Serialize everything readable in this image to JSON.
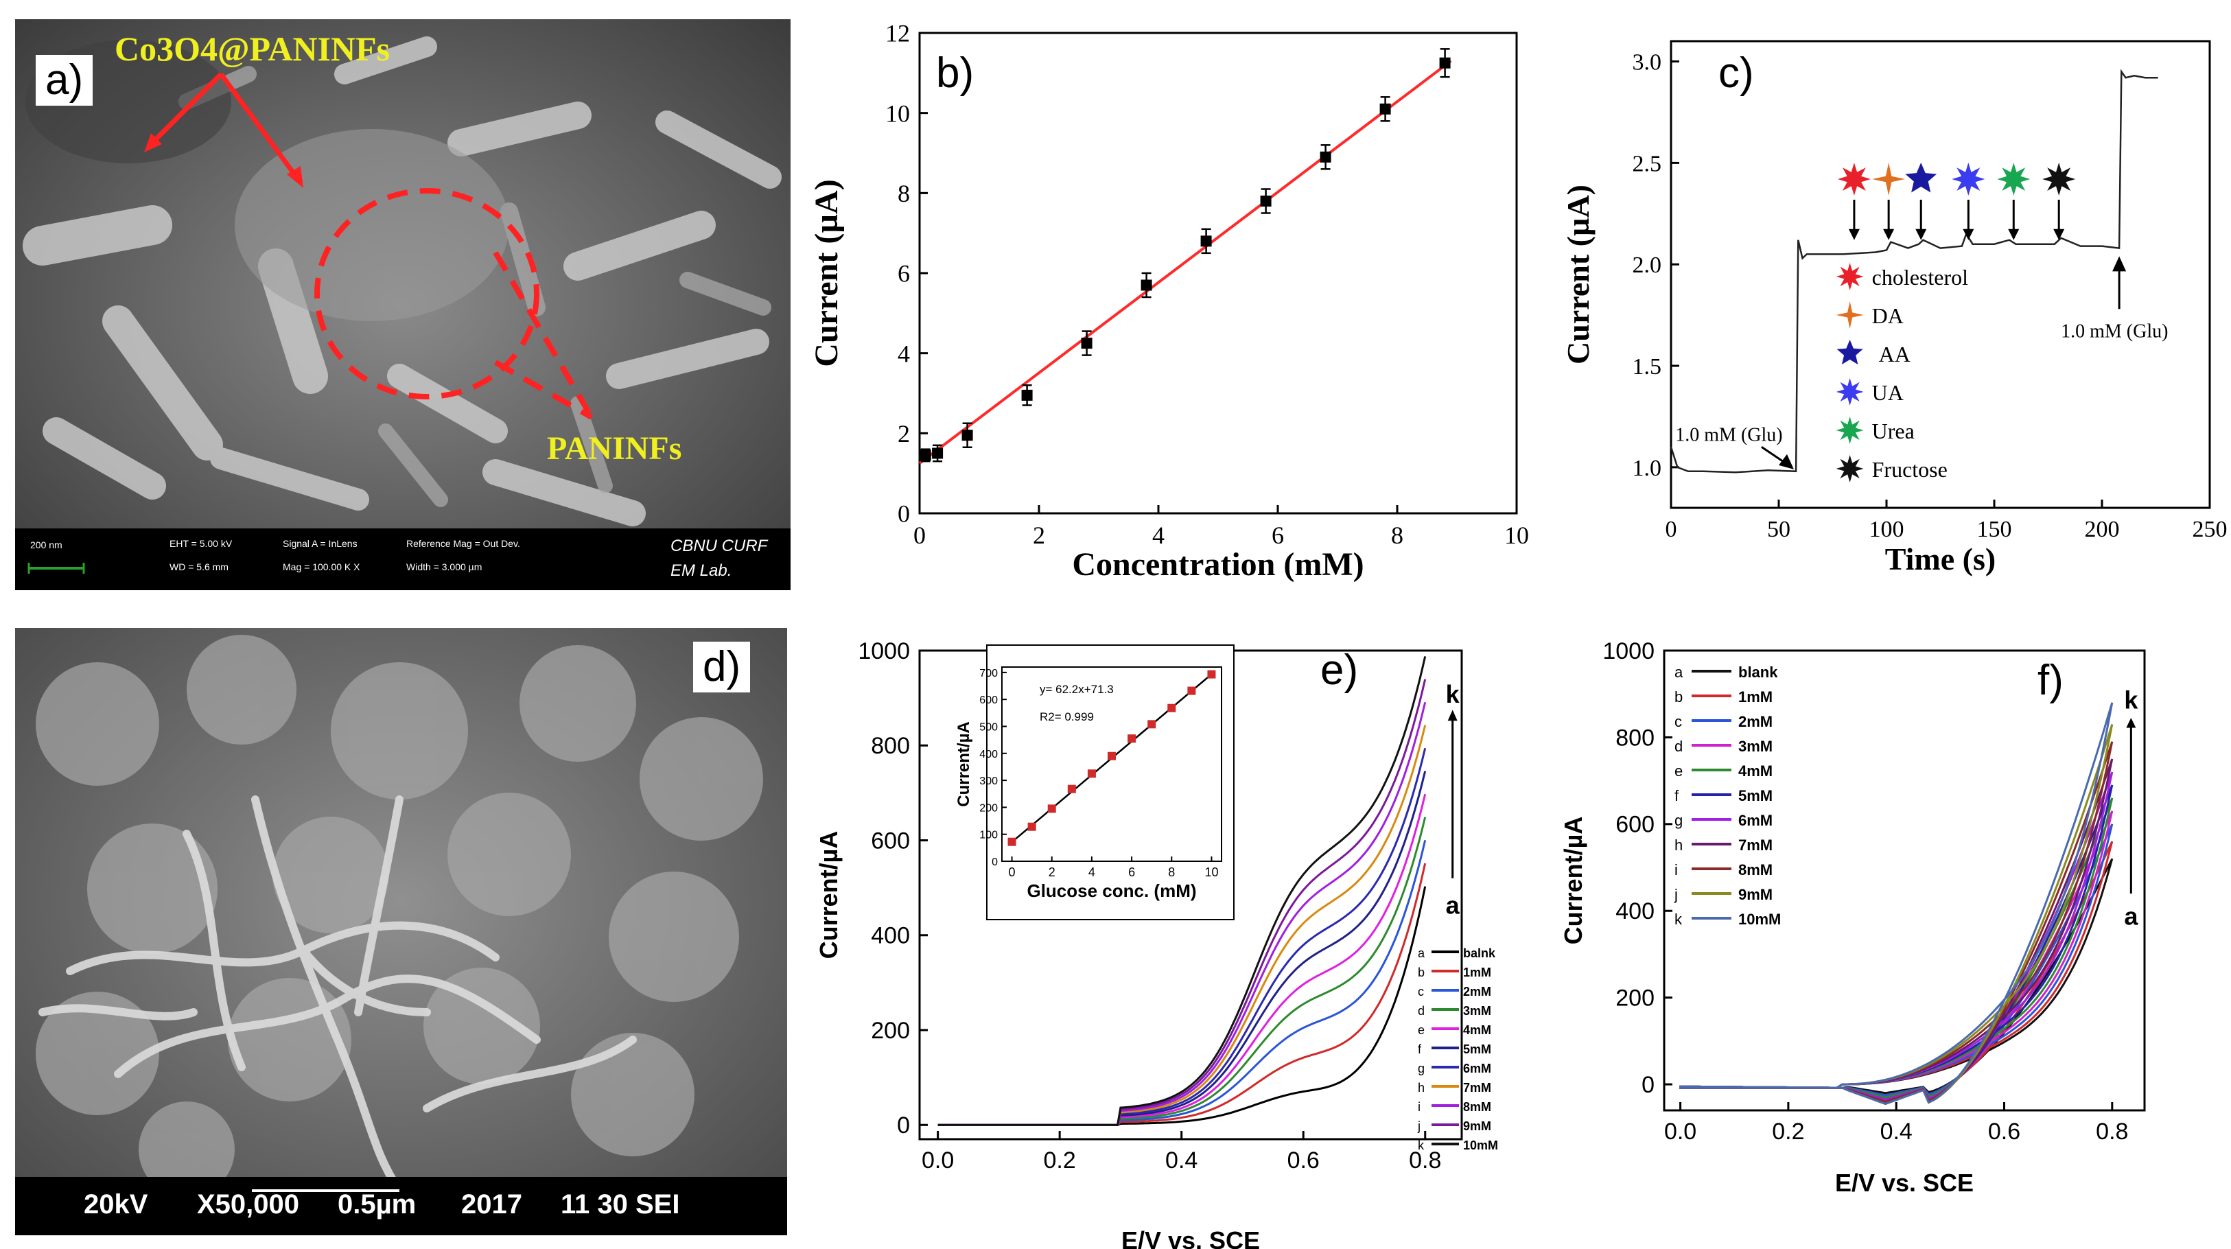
{
  "panel_labels": {
    "a": "a)",
    "b": "b)",
    "c": "c)",
    "d": "d)",
    "e": "e)",
    "f": "f)"
  },
  "sem_a": {
    "annotation_top": "Co3O4@PANINFs",
    "annotation_bottom": "PANINFs",
    "scale_bar": "200 nm",
    "info_1": "EHT = 5.00 kV",
    "info_2": "WD = 5.6 mm",
    "info_3": "Signal A = InLens",
    "info_4": "Mag = 100.00 K X",
    "info_5": "Reference Mag = Out Dev.",
    "info_6": "Width = 3.000 µm",
    "lab_1": "CBNU CURF",
    "lab_2": "EM Lab."
  },
  "sem_d": {
    "voltage": "20kV",
    "mag": "X50,000",
    "scale": "0.5µm",
    "year": "2017",
    "code": "11 30 SEI"
  },
  "chart_data": [
    {
      "id": "b",
      "type": "scatter",
      "xlabel": "Concentration (mM)",
      "ylabel": "Current (µA)",
      "xlim": [
        0,
        10
      ],
      "ylim": [
        0,
        12
      ],
      "xticks": [
        0,
        2,
        4,
        6,
        8,
        10
      ],
      "yticks": [
        0,
        2,
        4,
        6,
        8,
        10,
        12
      ],
      "x": [
        0.1,
        0.3,
        0.8,
        1.8,
        2.8,
        3.8,
        4.8,
        5.8,
        6.8,
        7.8,
        8.8
      ],
      "y": [
        1.45,
        1.5,
        1.95,
        2.95,
        4.25,
        5.7,
        6.8,
        7.8,
        8.9,
        10.1,
        11.25
      ],
      "error": [
        0.15,
        0.2,
        0.3,
        0.25,
        0.3,
        0.3,
        0.3,
        0.3,
        0.3,
        0.3,
        0.35
      ],
      "fit": {
        "x": [
          0,
          8.9
        ],
        "y": [
          1.25,
          11.3
        ]
      },
      "colors": {
        "points": "#000000",
        "fit": "#ff2a2a"
      }
    },
    {
      "id": "c",
      "type": "line",
      "xlabel": "Time (s)",
      "ylabel": "Current (µA)",
      "xlim": [
        0,
        250
      ],
      "ylim": [
        0.8,
        3.1
      ],
      "xticks": [
        0,
        50,
        100,
        150,
        200,
        250
      ],
      "yticks": [
        1.0,
        1.5,
        2.0,
        2.5,
        3.0
      ],
      "x": [
        0,
        3,
        8,
        15,
        30,
        45,
        58,
        59,
        61,
        63,
        70,
        80,
        95,
        100,
        102,
        110,
        115,
        117,
        125,
        135,
        137,
        140,
        150,
        157,
        160,
        170,
        178,
        181,
        190,
        200,
        208,
        209,
        211,
        215,
        220,
        226
      ],
      "y": [
        1.1,
        1.0,
        0.98,
        0.98,
        0.975,
        0.985,
        0.98,
        2.12,
        2.03,
        2.05,
        2.05,
        2.05,
        2.06,
        2.07,
        2.11,
        2.08,
        2.1,
        2.12,
        2.08,
        2.09,
        2.15,
        2.1,
        2.1,
        2.12,
        2.1,
        2.1,
        2.1,
        2.13,
        2.09,
        2.09,
        2.08,
        2.95,
        2.92,
        2.93,
        2.92,
        2.92
      ],
      "annotations": [
        {
          "text": "1.0 mM (Glu)",
          "at_x": 57
        },
        {
          "text": "1.0 mM (Glu)",
          "at_x": 208
        }
      ],
      "interferents": [
        {
          "name": "cholesterol",
          "x": 85,
          "color": "#e8202a"
        },
        {
          "name": "DA",
          "x": 101,
          "color": "#e07020"
        },
        {
          "name": "AA",
          "x": 116,
          "color": "#1a1aa0"
        },
        {
          "name": "UA",
          "x": 138,
          "color": "#3b3bef"
        },
        {
          "name": "Urea",
          "x": 159,
          "color": "#18a650"
        },
        {
          "name": "Fructose",
          "x": 180,
          "color": "#111111"
        }
      ]
    },
    {
      "id": "e",
      "type": "line",
      "xlabel": "E/V vs. SCE",
      "ylabel": "Current/µA",
      "xlim": [
        -0.03,
        0.86
      ],
      "ylim": [
        -30,
        1000
      ],
      "xticks": [
        0.0,
        0.2,
        0.4,
        0.6,
        0.8
      ],
      "yticks": [
        0,
        200,
        400,
        600,
        800,
        1000
      ],
      "series": [
        {
          "name": "balnk",
          "letter": "a",
          "color": "#000000",
          "a": 80,
          "b": 2,
          "c": 60,
          "d": 500
        },
        {
          "name": "1mM",
          "letter": "b",
          "color": "#d02a2a",
          "a": 160,
          "b": 5,
          "c": 75,
          "d": 545
        },
        {
          "name": "2mM",
          "letter": "c",
          "color": "#2a55d8",
          "a": 230,
          "b": 8,
          "c": 90,
          "d": 590
        },
        {
          "name": "3mM",
          "letter": "d",
          "color": "#2e8a2e",
          "a": 285,
          "b": 11,
          "c": 105,
          "d": 635
        },
        {
          "name": "4mM",
          "letter": "e",
          "color": "#e020e0",
          "a": 330,
          "b": 14,
          "c": 120,
          "d": 680
        },
        {
          "name": "5mM",
          "letter": "f",
          "color": "#20208a",
          "a": 380,
          "b": 17,
          "c": 135,
          "d": 725
        },
        {
          "name": "6mM",
          "letter": "g",
          "color": "#2a2ab0",
          "a": 420,
          "b": 20,
          "c": 150,
          "d": 770
        },
        {
          "name": "7mM",
          "letter": "h",
          "color": "#d88a10",
          "a": 470,
          "b": 23,
          "c": 165,
          "d": 815
        },
        {
          "name": "8mM",
          "letter": "i",
          "color": "#a020e0",
          "a": 510,
          "b": 26,
          "c": 180,
          "d": 860
        },
        {
          "name": "9mM",
          "letter": "j",
          "color": "#7a1a9a",
          "a": 545,
          "b": 29,
          "c": 195,
          "d": 905
        },
        {
          "name": "10mM",
          "letter": "k",
          "color": "#111111",
          "a": 580,
          "b": 32,
          "c": 210,
          "d": 950
        }
      ],
      "arrow_top": "k",
      "arrow_bottom": "a",
      "inset": {
        "xlabel": "Glucose conc. (mM)",
        "ylabel": "Current/µA",
        "xlim": [
          -0.5,
          10.5
        ],
        "ylim": [
          0,
          720
        ],
        "xticks": [
          0,
          2,
          4,
          6,
          8,
          10
        ],
        "yticks": [
          0,
          100,
          200,
          300,
          400,
          500,
          600,
          700
        ],
        "x": [
          0,
          1,
          2,
          3,
          4,
          5,
          6,
          7,
          8,
          9,
          10
        ],
        "y": [
          72,
          128,
          195,
          268,
          325,
          390,
          455,
          508,
          568,
          632,
          693
        ],
        "equation": "y= 62.2x+71.3",
        "r2": "R2= 0.999"
      }
    },
    {
      "id": "f",
      "type": "line",
      "xlabel": "E/V vs. SCE",
      "ylabel": "Current/µA",
      "xlim": [
        -0.03,
        0.86
      ],
      "ylim": [
        -60,
        1000
      ],
      "xticks": [
        0.0,
        0.2,
        0.4,
        0.6,
        0.8
      ],
      "yticks": [
        0,
        200,
        400,
        600,
        800,
        1000
      ],
      "series": [
        {
          "name": "blank",
          "letter": "a",
          "color": "#111111",
          "top": 520,
          "fwd": 300,
          "low": -20
        },
        {
          "name": "1mM",
          "letter": "b",
          "color": "#d02a2a",
          "top": 560,
          "fwd": 320,
          "low": -25
        },
        {
          "name": "2mM",
          "letter": "c",
          "color": "#2a55d8",
          "top": 600,
          "fwd": 345,
          "low": -25
        },
        {
          "name": "3mM",
          "letter": "d",
          "color": "#d020d0",
          "top": 630,
          "fwd": 370,
          "low": -30
        },
        {
          "name": "4mM",
          "letter": "e",
          "color": "#2e8a2e",
          "top": 660,
          "fwd": 395,
          "low": -30
        },
        {
          "name": "5mM",
          "letter": "f",
          "color": "#2222aa",
          "top": 690,
          "fwd": 420,
          "low": -35
        },
        {
          "name": "6mM",
          "letter": "g",
          "color": "#a020e0",
          "top": 720,
          "fwd": 450,
          "low": -35
        },
        {
          "name": "7mM",
          "letter": "h",
          "color": "#6a1a6a",
          "top": 750,
          "fwd": 480,
          "low": -40
        },
        {
          "name": "8mM",
          "letter": "i",
          "color": "#8a2a2a",
          "top": 790,
          "fwd": 520,
          "low": -40
        },
        {
          "name": "9mM",
          "letter": "j",
          "color": "#8a8a20",
          "top": 830,
          "fwd": 560,
          "low": -45
        },
        {
          "name": "10mM",
          "letter": "k",
          "color": "#4a6ab0",
          "top": 880,
          "fwd": 600,
          "low": -45
        }
      ],
      "arrow_top": "k",
      "arrow_bottom": "a"
    }
  ]
}
